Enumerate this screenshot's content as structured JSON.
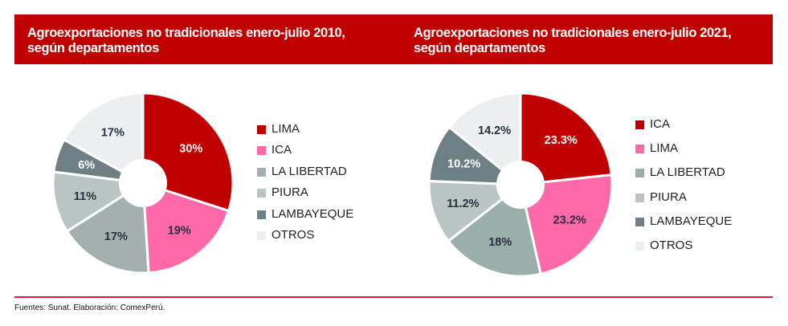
{
  "chart_data": [
    {
      "type": "pie",
      "title": "Agroexportaciones no tradicionales enero-julio 2010, según departamentos",
      "categories": [
        "LIMA",
        "ICA",
        "LA LIBERTAD",
        "PIURA",
        "LAMBAYEQUE",
        "OTROS"
      ],
      "values": [
        30,
        19,
        17,
        11,
        6,
        17
      ],
      "labels": [
        "30%",
        "19%",
        "17%",
        "11%",
        "6%",
        "17%"
      ],
      "colors": [
        "#C00000",
        "#FF69A8",
        "#A3B0AF",
        "#B8C5C2",
        "#6E8084",
        "#ECEFF0"
      ],
      "legend": "right",
      "donut": true
    },
    {
      "type": "pie",
      "title": "Agroexportaciones no tradicionales enero-julio 2021, según departamentos",
      "categories": [
        "ICA",
        "LIMA",
        "LA LIBERTAD",
        "PIURA",
        "LAMBAYEQUE",
        "OTROS"
      ],
      "values": [
        23.3,
        23.2,
        18,
        11.2,
        10.2,
        14.2
      ],
      "labels": [
        "23.3%",
        "23.2%",
        "18%",
        "11.2%",
        "10.2%",
        "14.2%"
      ],
      "colors": [
        "#C00000",
        "#FF69A8",
        "#9AAFAA",
        "#B8C5C2",
        "#6E8084",
        "#ECEFF0"
      ],
      "legend": "right",
      "donut": true
    }
  ],
  "footer": "Fuentes: Sunat. Elaboración: ComexPerú."
}
